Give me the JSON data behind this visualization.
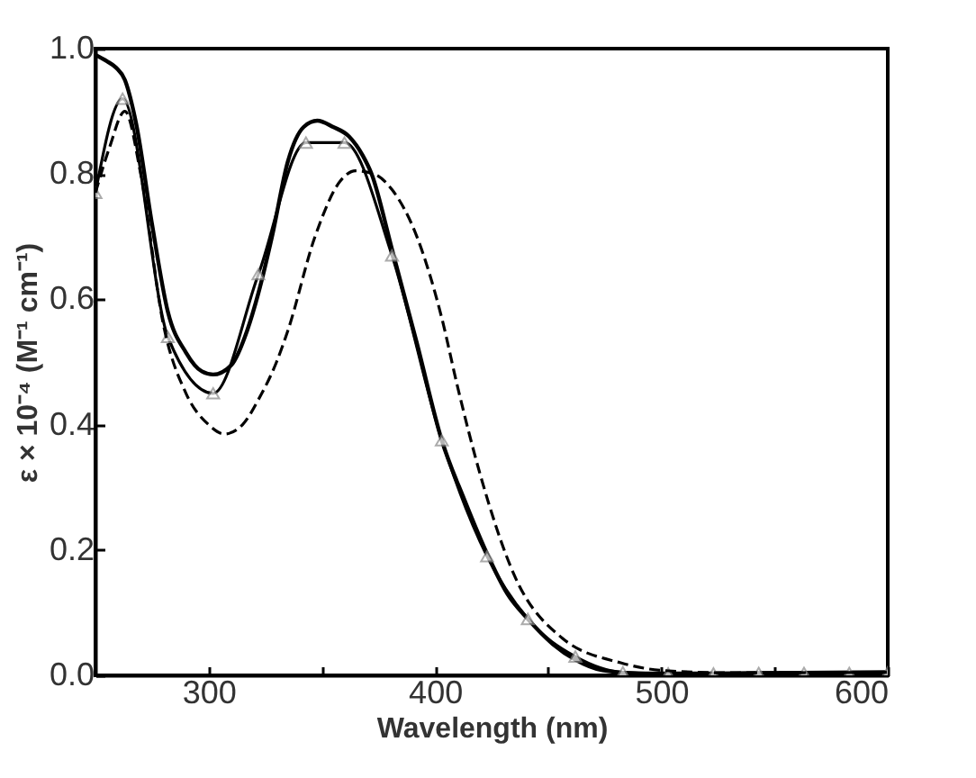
{
  "chart_data": {
    "type": "line",
    "xlabel": "Wavelength (nm)",
    "ylabel": "ε × 10⁻⁴ (M⁻¹ cm⁻¹)",
    "xlim": [
      250,
      600
    ],
    "ylim": [
      0,
      1.0
    ],
    "xticks": [
      300,
      {
        "value": 350,
        "label": null
      },
      400,
      {
        "value": 450,
        "label": null
      },
      500,
      {
        "value": 550,
        "label": null
      },
      600
    ],
    "yticks": [
      {
        "value": 0,
        "label": "0.0"
      },
      0.2,
      0.4,
      0.6,
      0.8,
      {
        "value": 1,
        "label": "1.0"
      }
    ],
    "series": [
      {
        "color": "#000000",
        "line_style": "solid",
        "marker": "none",
        "x": [
          250,
          255,
          259,
          263,
          268,
          275,
          282,
          290,
          297,
          302,
          310,
          317,
          322,
          328,
          335,
          342,
          348,
          355,
          362,
          368,
          372,
          381,
          392,
          403,
          413,
          423,
          432,
          441,
          452,
          462,
          474,
          490,
          520,
          560,
          600
        ],
        "values": [
          0.99,
          0.98,
          0.97,
          0.95,
          0.88,
          0.72,
          0.58,
          0.515,
          0.485,
          0.48,
          0.495,
          0.55,
          0.61,
          0.7,
          0.82,
          0.875,
          0.885,
          0.875,
          0.86,
          0.83,
          0.8,
          0.68,
          0.53,
          0.375,
          0.28,
          0.194,
          0.13,
          0.09,
          0.05,
          0.025,
          0.008,
          0.003,
          0.003,
          0.004,
          0.005
        ]
      },
      {
        "color": "#000000",
        "line_style": "solid",
        "marker": "triangle",
        "x": [
          250,
          262,
          282,
          302,
          322,
          343,
          360,
          381,
          403,
          423,
          441,
          462,
          483,
          503,
          523,
          543,
          563,
          583,
          600
        ],
        "values": [
          0.77,
          0.92,
          0.54,
          0.45,
          0.64,
          0.85,
          0.85,
          0.67,
          0.375,
          0.19,
          0.09,
          0.03,
          0.005,
          0.003,
          0.003,
          0.004,
          0.004,
          0.004,
          0.005
        ]
      },
      {
        "color": "#000000",
        "line_style": "dashed",
        "marker": "none",
        "x": [
          250,
          256,
          263,
          270,
          280,
          290,
          300,
          307,
          315,
          322,
          330,
          335,
          347,
          358,
          365,
          373,
          381,
          392,
          403,
          410,
          420,
          435,
          456,
          482,
          500,
          530,
          600
        ],
        "values": [
          0.77,
          0.84,
          0.9,
          0.8,
          0.56,
          0.45,
          0.4,
          0.385,
          0.4,
          0.44,
          0.5,
          0.55,
          0.7,
          0.788,
          0.805,
          0.8,
          0.775,
          0.7,
          0.57,
          0.46,
          0.32,
          0.16,
          0.06,
          0.02,
          0.008,
          0.004,
          0.005
        ]
      }
    ]
  }
}
